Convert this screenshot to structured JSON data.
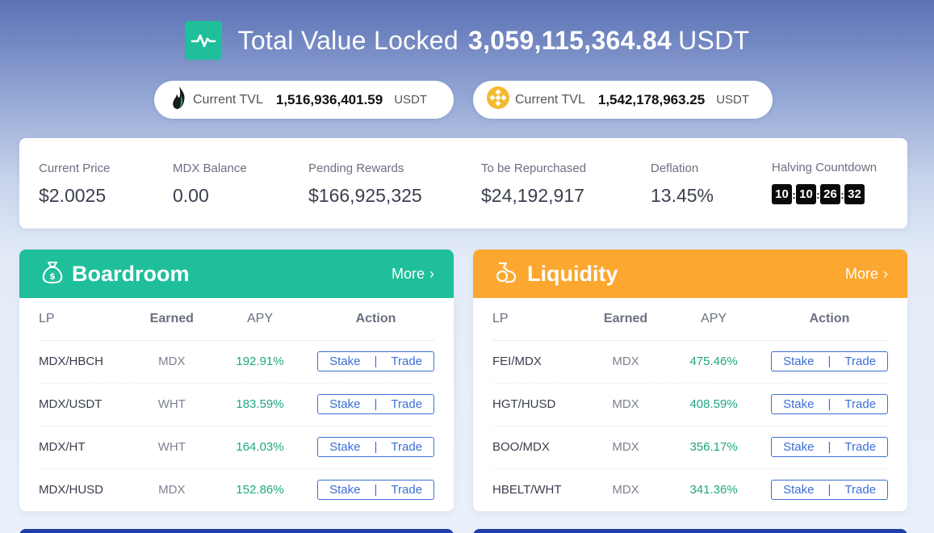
{
  "header": {
    "title": "Total Value Locked",
    "value": "3,059,115,364.84",
    "unit": "USDT"
  },
  "pills": [
    {
      "label": "Current TVL",
      "value": "1,516,936,401.59",
      "unit": "USDT",
      "icon": "heco-flame-icon"
    },
    {
      "label": "Current TVL",
      "value": "1,542,178,963.25",
      "unit": "USDT",
      "icon": "bsc-logo-icon"
    }
  ],
  "stats": {
    "current_price": {
      "label": "Current Price",
      "value": "$2.0025"
    },
    "mdx_balance": {
      "label": "MDX Balance",
      "value": "0.00"
    },
    "pending_rewards": {
      "label": "Pending Rewards",
      "value": "$166,925,325"
    },
    "to_be_repurchased": {
      "label": "To be Repurchased",
      "value": "$24,192,917"
    },
    "deflation": {
      "label": "Deflation",
      "value": "13.45%"
    },
    "halving": {
      "label": "Halving Countdown",
      "digits": [
        "10",
        "10",
        "26",
        "32"
      ],
      "sep": ":"
    }
  },
  "columns": {
    "lp": "LP",
    "earned": "Earned",
    "apy": "APY",
    "action": "Action"
  },
  "actions": {
    "stake": "Stake",
    "divider": "|",
    "trade": "Trade"
  },
  "boardroom": {
    "title": "Boardroom",
    "more": "More",
    "chevron": "›",
    "rows": [
      {
        "lp": "MDX/HBCH",
        "earned": "MDX",
        "apy": "192.91%"
      },
      {
        "lp": "MDX/USDT",
        "earned": "WHT",
        "apy": "183.59%"
      },
      {
        "lp": "MDX/HT",
        "earned": "WHT",
        "apy": "164.03%"
      },
      {
        "lp": "MDX/HUSD",
        "earned": "MDX",
        "apy": "152.86%"
      }
    ]
  },
  "liquidity": {
    "title": "Liquidity",
    "more": "More",
    "chevron": "›",
    "rows": [
      {
        "lp": "FEI/MDX",
        "earned": "MDX",
        "apy": "475.46%"
      },
      {
        "lp": "HGT/HUSD",
        "earned": "MDX",
        "apy": "408.59%"
      },
      {
        "lp": "BOO/MDX",
        "earned": "MDX",
        "apy": "356.17%"
      },
      {
        "lp": "HBELT/WHT",
        "earned": "MDX",
        "apy": "341.36%"
      }
    ]
  }
}
